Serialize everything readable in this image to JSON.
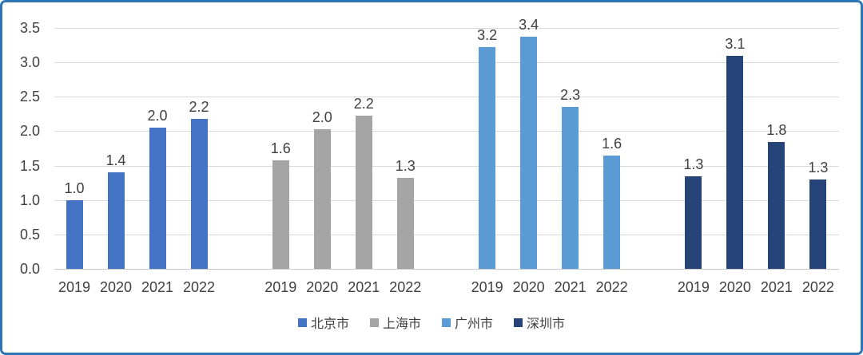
{
  "chart_data": {
    "type": "bar",
    "title": "",
    "xlabel": "",
    "ylabel": "",
    "grid": true,
    "legend_position": "bottom",
    "y_axis": {
      "min": 0.0,
      "max": 3.5,
      "step": 0.5,
      "tick_labels": [
        "0.0",
        "0.5",
        "1.0",
        "1.5",
        "2.0",
        "2.5",
        "3.0",
        "3.5"
      ]
    },
    "categories": [
      "2019",
      "2020",
      "2021",
      "2022"
    ],
    "series": [
      {
        "name": "北京市",
        "color": "#4472C4",
        "values": [
          1.0,
          1.4,
          2.0,
          2.2
        ],
        "value_labels": [
          "1.0",
          "1.4",
          "2.0",
          "2.2"
        ],
        "bar_tops": [
          1.0,
          1.4,
          2.05,
          2.18
        ]
      },
      {
        "name": "上海市",
        "color": "#A5A5A5",
        "values": [
          1.6,
          2.0,
          2.2,
          1.3
        ],
        "value_labels": [
          "1.6",
          "2.0",
          "2.2",
          "1.3"
        ],
        "bar_tops": [
          1.58,
          2.03,
          2.22,
          1.32
        ]
      },
      {
        "name": "广州市",
        "color": "#5B9BD5",
        "values": [
          3.2,
          3.4,
          2.3,
          1.6
        ],
        "value_labels": [
          "3.2",
          "3.4",
          "2.3",
          "1.6"
        ],
        "bar_tops": [
          3.22,
          3.37,
          2.35,
          1.65
        ]
      },
      {
        "name": "深圳市",
        "color": "#264478",
        "values": [
          1.3,
          3.1,
          1.8,
          1.3
        ],
        "value_labels": [
          "1.3",
          "3.1",
          "1.8",
          "1.3"
        ],
        "bar_tops": [
          1.35,
          3.1,
          1.84,
          1.3
        ]
      }
    ],
    "legend": [
      {
        "label": "北京市",
        "color": "#4472C4"
      },
      {
        "label": "上海市",
        "color": "#A5A5A5"
      },
      {
        "label": "广州市",
        "color": "#5B9BD5"
      },
      {
        "label": "深圳市",
        "color": "#264478"
      }
    ]
  },
  "frame": {
    "border_color": "#2E75B6",
    "background": "#FFFFFF",
    "gridline_color": "#D9D9D9",
    "text_color": "#404040"
  }
}
